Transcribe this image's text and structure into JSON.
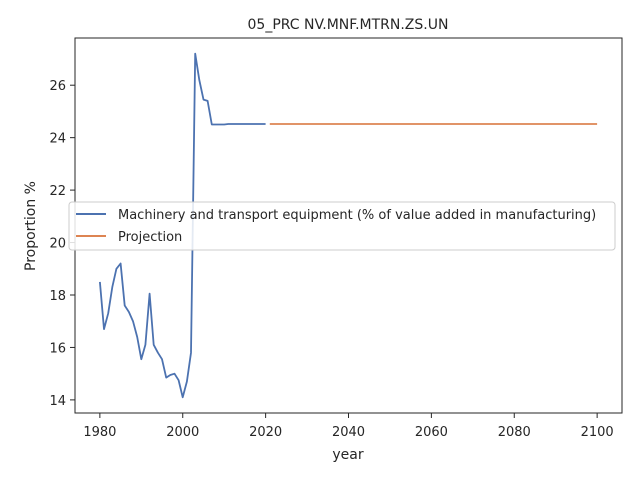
{
  "chart_data": {
    "type": "line",
    "title": "05_PRC NV.MNF.MTRN.ZS.UN",
    "xlabel": "year",
    "ylabel": "Proportion %",
    "xlim": [
      1974,
      2106
    ],
    "ylim": [
      13.5,
      27.8
    ],
    "xticks": [
      1980,
      2000,
      2020,
      2040,
      2060,
      2080,
      2100
    ],
    "yticks": [
      14,
      16,
      18,
      20,
      22,
      24,
      26
    ],
    "grid": false,
    "legend_position": "center-left",
    "series": [
      {
        "name": "Machinery and transport equipment (% of value added in manufacturing)",
        "color": "#4c72b0",
        "x": [
          1980,
          1981,
          1982,
          1983,
          1984,
          1985,
          1986,
          1987,
          1988,
          1989,
          1990,
          1991,
          1992,
          1993,
          1994,
          1995,
          1996,
          1997,
          1998,
          1999,
          2000,
          2001,
          2002,
          2003,
          2004,
          2005,
          2006,
          2007,
          2008,
          2009,
          2010,
          2011,
          2012,
          2013,
          2014,
          2015,
          2016,
          2017,
          2018,
          2019,
          2020
        ],
        "y": [
          18.5,
          16.7,
          17.3,
          18.3,
          19.0,
          19.2,
          17.6,
          17.35,
          17.0,
          16.4,
          15.55,
          16.1,
          18.05,
          16.1,
          15.8,
          15.55,
          14.85,
          14.95,
          15.0,
          14.75,
          14.1,
          14.7,
          15.8,
          27.2,
          26.2,
          25.45,
          25.4,
          24.5,
          24.5,
          24.5,
          24.5,
          24.52,
          24.52,
          24.52,
          24.52,
          24.52,
          24.52,
          24.52,
          24.52,
          24.52,
          24.52
        ]
      },
      {
        "name": "Projection",
        "color": "#dd8452",
        "x": [
          2021,
          2100
        ],
        "y": [
          24.52,
          24.52
        ]
      }
    ]
  }
}
